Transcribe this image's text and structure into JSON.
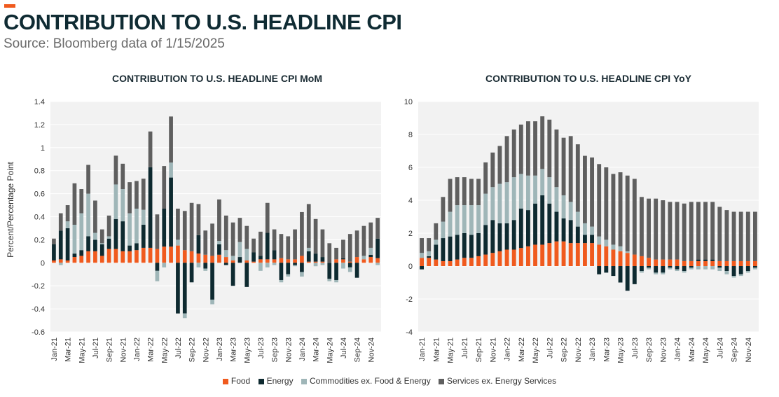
{
  "page": {
    "title": "CONTRIBUTION TO U.S. HEADLINE CPI",
    "subtitle": "Source: Bloomberg data of 1/15/2025",
    "accent_color": "#f05a1e"
  },
  "legend": [
    {
      "label": "Food",
      "color": "#f05a1e"
    },
    {
      "label": "Energy",
      "color": "#0e2a30"
    },
    {
      "label": "Commodities ex. Food & Energy",
      "color": "#9fb6b8"
    },
    {
      "label": "Services ex. Energy Services",
      "color": "#5f5f5f"
    }
  ],
  "chart_data": [
    {
      "type": "bar",
      "stacked": true,
      "title": "CONTRIBUTION TO U.S. HEADLINE CPI MoM",
      "xlabel": "",
      "ylabel": "Percent/Percentage Point",
      "ylim": [
        -0.6,
        1.4
      ],
      "yticks": [
        -0.6,
        -0.4,
        -0.2,
        0,
        0.2,
        0.4,
        0.6,
        0.8,
        1,
        1.2,
        1.4
      ],
      "ytick_labels": [
        "-0.6",
        "-0.4",
        "-0.2",
        "0",
        "0.2",
        "0.4",
        "0.6",
        "0.8",
        "1",
        "1.2",
        "1.4"
      ],
      "grid": true,
      "categories": [
        "Jan-21",
        "Feb-21",
        "Mar-21",
        "Apr-21",
        "May-21",
        "Jun-21",
        "Jul-21",
        "Aug-21",
        "Sep-21",
        "Oct-21",
        "Nov-21",
        "Dec-21",
        "Jan-22",
        "Feb-22",
        "Mar-22",
        "Apr-22",
        "May-22",
        "Jun-22",
        "Jul-22",
        "Aug-22",
        "Sep-22",
        "Oct-22",
        "Nov-22",
        "Dec-22",
        "Jan-23",
        "Feb-23",
        "Mar-23",
        "Apr-23",
        "May-23",
        "Jun-23",
        "Jul-23",
        "Aug-23",
        "Sep-23",
        "Oct-23",
        "Nov-23",
        "Dec-23",
        "Jan-24",
        "Feb-24",
        "Mar-24",
        "Apr-24",
        "May-24",
        "Jun-24",
        "Jul-24",
        "Aug-24",
        "Sep-24",
        "Oct-24",
        "Nov-24",
        "Dec-24"
      ],
      "tick_labels": [
        "Jan-21",
        "Mar-21",
        "May-21",
        "Jul-21",
        "Sep-21",
        "Nov-21",
        "Jan-22",
        "Mar-22",
        "May-22",
        "Jul-22",
        "Sep-22",
        "Nov-22",
        "Jan-23",
        "Mar-23",
        "May-23",
        "Jul-23",
        "Sep-23",
        "Nov-23",
        "Jan-24",
        "Mar-24",
        "May-24",
        "Jul-24",
        "Sep-24",
        "Nov-24"
      ],
      "series": [
        {
          "name": "Food",
          "color": "#f05a1e",
          "values": [
            0.02,
            0.03,
            0.02,
            0.05,
            0.06,
            0.1,
            0.1,
            0.06,
            0.12,
            0.12,
            0.1,
            0.1,
            0.11,
            0.13,
            0.13,
            0.12,
            0.14,
            0.14,
            0.15,
            0.11,
            0.1,
            0.08,
            0.07,
            0.06,
            0.07,
            0.05,
            0.02,
            0.0,
            0.02,
            0.01,
            0.03,
            0.03,
            0.03,
            0.04,
            0.03,
            0.03,
            0.06,
            0.01,
            0.01,
            0.01,
            0.0,
            0.03,
            0.03,
            0.01,
            0.05,
            0.03,
            0.05,
            0.04
          ]
        },
        {
          "name": "Energy",
          "color": "#0e2a30",
          "values": [
            0.14,
            0.25,
            0.28,
            0.03,
            0.05,
            0.13,
            0.1,
            0.1,
            0.09,
            0.26,
            0.26,
            0.05,
            0.06,
            0.2,
            0.7,
            -0.07,
            0.33,
            0.6,
            -0.44,
            -0.44,
            -0.17,
            0.16,
            -0.05,
            -0.32,
            0.09,
            -0.02,
            -0.2,
            0.05,
            -0.21,
            0.08,
            0.03,
            0.23,
            0.08,
            -0.15,
            -0.1,
            -0.02,
            -0.08,
            0.09,
            0.07,
            0.04,
            -0.14,
            -0.15,
            0.01,
            -0.04,
            -0.13,
            0.0,
            0.02,
            0.17
          ]
        },
        {
          "name": "Commodities ex. Food & Energy",
          "color": "#9fb6b8",
          "values": [
            0.0,
            -0.02,
            0.06,
            0.25,
            0.32,
            0.37,
            0.06,
            0.01,
            0.02,
            0.3,
            0.28,
            0.28,
            0.3,
            0.13,
            0.0,
            -0.09,
            -0.04,
            0.13,
            0.05,
            -0.04,
            0.0,
            -0.04,
            -0.02,
            -0.04,
            0.03,
            0.06,
            0.04,
            0.13,
            0.1,
            0.0,
            -0.07,
            -0.04,
            -0.02,
            -0.02,
            -0.02,
            -0.01,
            -0.04,
            0.03,
            -0.03,
            -0.02,
            -0.02,
            -0.02,
            -0.05,
            -0.04,
            0.0,
            0.03,
            0.06,
            -0.02
          ]
        },
        {
          "name": "Services ex. Energy Services",
          "color": "#5f5f5f",
          "values": [
            0.05,
            0.15,
            0.14,
            0.36,
            0.21,
            0.25,
            0.28,
            0.12,
            0.18,
            0.25,
            0.22,
            0.27,
            0.24,
            0.27,
            0.31,
            0.3,
            0.37,
            0.4,
            0.27,
            0.34,
            0.42,
            0.27,
            0.21,
            0.28,
            0.36,
            0.3,
            0.29,
            0.21,
            0.2,
            0.12,
            0.21,
            0.26,
            0.18,
            0.21,
            0.2,
            0.26,
            0.38,
            0.38,
            0.3,
            0.24,
            0.17,
            0.1,
            0.16,
            0.24,
            0.23,
            0.26,
            0.22,
            0.18
          ]
        }
      ]
    },
    {
      "type": "bar",
      "stacked": true,
      "title": "CONTRIBUTION TO U.S. HEADLINE CPI YoY",
      "xlabel": "",
      "ylabel": "",
      "ylim": [
        -4,
        10
      ],
      "yticks": [
        -4,
        -2,
        0,
        2,
        4,
        6,
        8,
        10
      ],
      "ytick_labels": [
        "-4",
        "-2",
        "0",
        "2",
        "4",
        "6",
        "8",
        "10"
      ],
      "grid": true,
      "categories": [
        "Jan-21",
        "Feb-21",
        "Mar-21",
        "Apr-21",
        "May-21",
        "Jun-21",
        "Jul-21",
        "Aug-21",
        "Sep-21",
        "Oct-21",
        "Nov-21",
        "Dec-21",
        "Jan-22",
        "Feb-22",
        "Mar-22",
        "Apr-22",
        "May-22",
        "Jun-22",
        "Jul-22",
        "Aug-22",
        "Sep-22",
        "Oct-22",
        "Nov-22",
        "Dec-22",
        "Jan-23",
        "Feb-23",
        "Mar-23",
        "Apr-23",
        "May-23",
        "Jun-23",
        "Jul-23",
        "Aug-23",
        "Sep-23",
        "Oct-23",
        "Nov-23",
        "Dec-23",
        "Jan-24",
        "Feb-24",
        "Mar-24",
        "Apr-24",
        "May-24",
        "Jun-24",
        "Jul-24",
        "Aug-24",
        "Sep-24",
        "Oct-24",
        "Nov-24",
        "Dec-24"
      ],
      "tick_labels": [
        "Jan-21",
        "Mar-21",
        "May-21",
        "Jul-21",
        "Sep-21",
        "Nov-21",
        "Jan-22",
        "Mar-22",
        "May-22",
        "Jul-22",
        "Sep-22",
        "Nov-22",
        "Jan-23",
        "Mar-23",
        "May-23",
        "Jul-23",
        "Sep-23",
        "Nov-23",
        "Jan-24",
        "Mar-24",
        "May-24",
        "Jul-24",
        "Sep-24",
        "Nov-24"
      ],
      "series": [
        {
          "name": "Food",
          "color": "#f05a1e",
          "values": [
            0.5,
            0.5,
            0.4,
            0.3,
            0.3,
            0.4,
            0.5,
            0.5,
            0.6,
            0.7,
            0.8,
            0.9,
            1.0,
            1.0,
            1.1,
            1.2,
            1.3,
            1.3,
            1.4,
            1.5,
            1.5,
            1.4,
            1.4,
            1.4,
            1.4,
            1.3,
            1.2,
            1.0,
            0.9,
            0.8,
            0.7,
            0.6,
            0.5,
            0.4,
            0.4,
            0.4,
            0.4,
            0.3,
            0.3,
            0.3,
            0.3,
            0.3,
            0.3,
            0.3,
            0.3,
            0.3,
            0.3,
            0.3
          ]
        },
        {
          "name": "Energy",
          "color": "#0e2a30",
          "values": [
            -0.2,
            0.1,
            0.9,
            1.4,
            1.5,
            1.5,
            1.5,
            1.4,
            1.4,
            1.8,
            2.0,
            1.7,
            1.6,
            1.8,
            2.4,
            2.2,
            2.5,
            3.0,
            2.4,
            1.8,
            1.4,
            1.4,
            1.0,
            0.5,
            0.5,
            -0.5,
            -0.4,
            -0.6,
            -1.0,
            -1.5,
            -1.1,
            -0.3,
            -0.1,
            -0.4,
            -0.4,
            -0.1,
            -0.2,
            -0.3,
            -0.1,
            0.1,
            0.1,
            0.1,
            -0.1,
            -0.3,
            -0.6,
            -0.5,
            -0.3,
            -0.1
          ]
        },
        {
          "name": "Commodities ex. Food & Energy",
          "color": "#9fb6b8",
          "values": [
            0.3,
            0.3,
            0.3,
            1.0,
            1.5,
            1.8,
            1.7,
            1.8,
            1.7,
            1.9,
            2.0,
            2.4,
            2.5,
            2.6,
            2.1,
            2.1,
            1.7,
            1.6,
            1.6,
            1.5,
            1.4,
            1.1,
            0.9,
            0.7,
            0.5,
            0.5,
            0.4,
            0.3,
            0.3,
            0.1,
            0.0,
            -0.1,
            -0.1,
            -0.1,
            -0.1,
            -0.1,
            -0.1,
            -0.1,
            -0.1,
            -0.2,
            -0.2,
            -0.2,
            -0.2,
            -0.2,
            -0.1,
            -0.1,
            -0.1,
            -0.1
          ]
        },
        {
          "name": "Services ex. Energy Services",
          "color": "#5f5f5f",
          "values": [
            0.9,
            0.8,
            1.0,
            1.5,
            2.0,
            1.7,
            1.7,
            1.6,
            1.6,
            1.9,
            2.1,
            2.3,
            2.8,
            2.9,
            3.0,
            3.3,
            3.3,
            3.2,
            3.5,
            3.5,
            3.5,
            4.0,
            4.1,
            4.1,
            4.2,
            4.4,
            4.4,
            4.3,
            4.5,
            4.6,
            4.6,
            3.6,
            3.6,
            3.7,
            3.6,
            3.5,
            3.5,
            3.5,
            3.6,
            3.5,
            3.5,
            3.5,
            3.3,
            3.1,
            3.0,
            3.0,
            3.0,
            3.0
          ]
        }
      ]
    }
  ]
}
